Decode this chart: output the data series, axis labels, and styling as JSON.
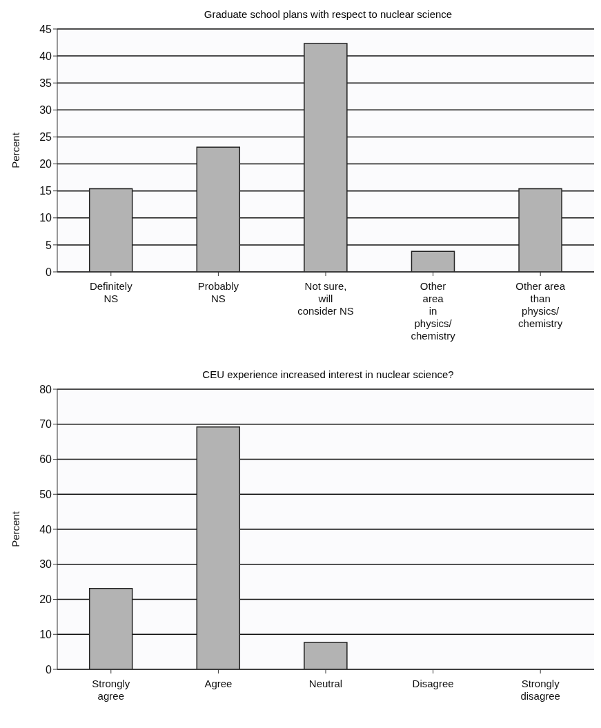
{
  "chart_data": [
    {
      "type": "bar",
      "title": "Graduate school plans with respect to nuclear science",
      "ylabel": "Percent",
      "categories": [
        "Definitely\nNS",
        "Probably\nNS",
        "Not sure,\nwill\nconsider NS",
        "Other\narea\nin\nphysics/\nchemistry",
        "Other area\nthan\nphysics/\nchemistry"
      ],
      "values": [
        15.4,
        23.1,
        42.3,
        3.8,
        15.4
      ],
      "color": "#b3b3b3",
      "ylim": [
        0,
        45
      ],
      "yticks": [
        0,
        5,
        10,
        15,
        20,
        25,
        30,
        35,
        40,
        45
      ],
      "grid": "y"
    },
    {
      "type": "bar",
      "title": "CEU experience increased interest in nuclear science?",
      "ylabel": "Percent",
      "categories": [
        "Strongly\nagree",
        "Agree",
        "Neutral",
        "Disagree",
        "Strongly\ndisagree"
      ],
      "values": [
        23.1,
        69.2,
        7.7,
        0,
        0
      ],
      "color": "#b3b3b3",
      "ylim": [
        0,
        80
      ],
      "yticks": [
        0,
        10,
        20,
        30,
        40,
        50,
        60,
        70,
        80
      ],
      "grid": "y"
    }
  ]
}
